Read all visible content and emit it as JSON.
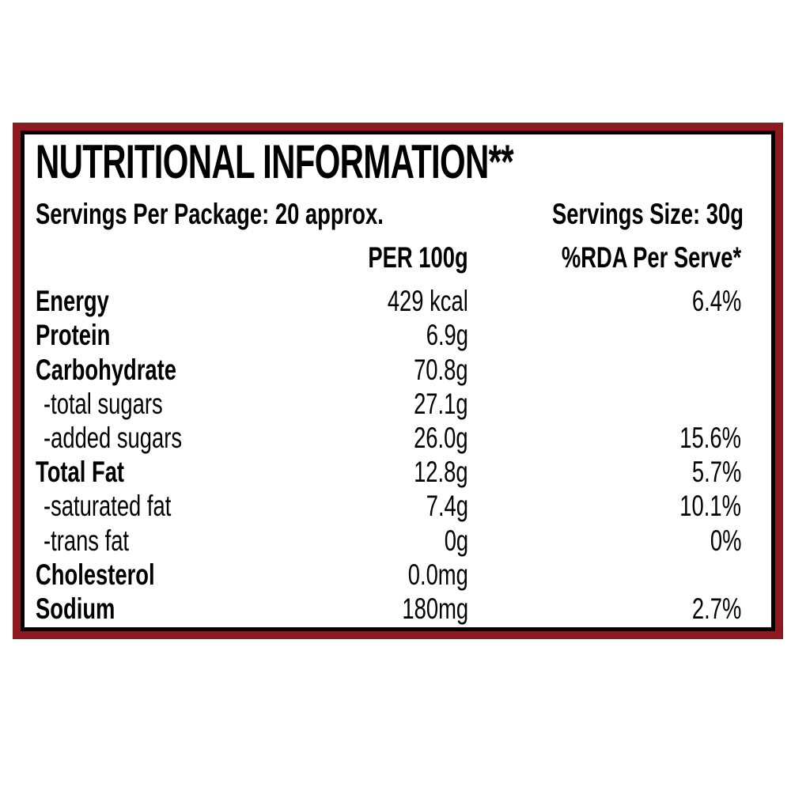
{
  "label": {
    "title": "NUTRITIONAL INFORMATION**",
    "servings_per_package": "Servings Per Package: 20 approx.",
    "serving_size": "Servings Size: 30g",
    "columns": {
      "per_100g": "PER 100g",
      "rda": "%RDA Per Serve*"
    },
    "rows": [
      {
        "name": "Energy",
        "per_100g": "429 kcal",
        "rda": "6.4%"
      },
      {
        "name": "Protein",
        "per_100g": "6.9g",
        "rda": ""
      },
      {
        "name": "Carbohydrate",
        "per_100g": "70.8g",
        "rda": ""
      },
      {
        "name": "-total sugars",
        "per_100g": "27.1g",
        "rda": ""
      },
      {
        "name": "-added sugars",
        "per_100g": "26.0g",
        "rda": "15.6%"
      },
      {
        "name": "Total Fat",
        "per_100g": "12.8g",
        "rda": "5.7%"
      },
      {
        "name": "-saturated fat",
        "per_100g": "7.4g",
        "rda": "10.1%"
      },
      {
        "name": "-trans fat",
        "per_100g": "0g",
        "rda": "0%"
      },
      {
        "name": "Cholesterol",
        "per_100g": "0.0mg",
        "rda": ""
      },
      {
        "name": "Sodium",
        "per_100g": "180mg",
        "rda": "2.7%"
      }
    ],
    "colors": {
      "border_outer": "#8D1A1E",
      "border_inner": "#000000",
      "background": "#FFFFFF",
      "text": "#000000"
    }
  }
}
